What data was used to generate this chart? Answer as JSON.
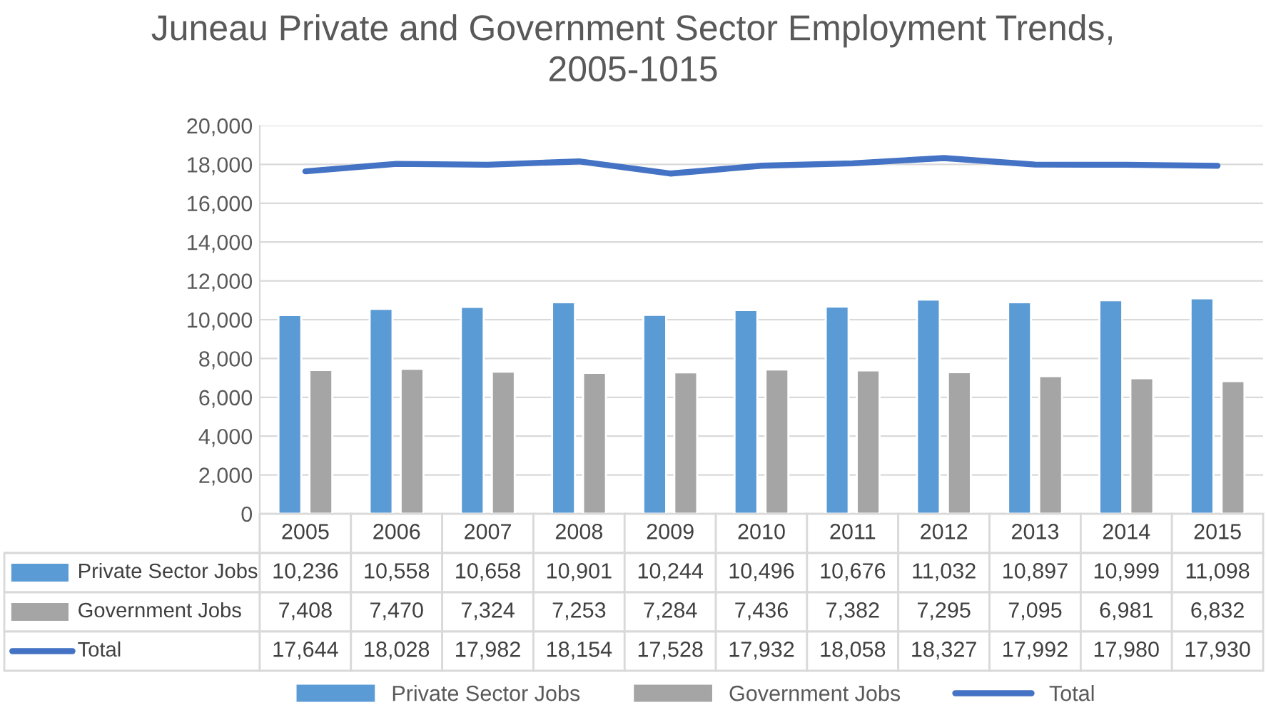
{
  "chart_data": {
    "type": "bar",
    "title": "Juneau Private and Government Sector Employment Trends,\n2005-1015",
    "categories": [
      "2005",
      "2006",
      "2007",
      "2008",
      "2009",
      "2010",
      "2011",
      "2012",
      "2013",
      "2014",
      "2015"
    ],
    "series": [
      {
        "name": "Private Sector Jobs",
        "color": "#5b9bd5",
        "values": [
          10236,
          10558,
          10658,
          10901,
          10244,
          10496,
          10676,
          11032,
          10897,
          10999,
          11098
        ],
        "value_labels": [
          "10,236",
          "10,558",
          "10,658",
          "10,901",
          "10,244",
          "10,496",
          "10,676",
          "11,032",
          "10,897",
          "10,999",
          "11,098"
        ]
      },
      {
        "name": "Government Jobs",
        "color": "#a5a5a5",
        "values": [
          7408,
          7470,
          7324,
          7253,
          7284,
          7436,
          7382,
          7295,
          7095,
          6981,
          6832
        ],
        "value_labels": [
          "7,408",
          "7,470",
          "7,324",
          "7,253",
          "7,284",
          "7,436",
          "7,382",
          "7,295",
          "7,095",
          "6,981",
          "6,832"
        ]
      },
      {
        "name": "Total",
        "type": "line",
        "color": "#4472c4",
        "values": [
          17644,
          18028,
          17982,
          18154,
          17528,
          17932,
          18058,
          18327,
          17992,
          17980,
          17930
        ],
        "value_labels": [
          "17,644",
          "18,028",
          "17,982",
          "18,154",
          "17,528",
          "17,932",
          "18,058",
          "18,327",
          "17,992",
          "17,980",
          "17,930"
        ]
      }
    ],
    "ylim": [
      0,
      20000
    ],
    "yticks": [
      0,
      {
        "value": 2000,
        "label": "2,000"
      },
      {
        "value": 4000,
        "label": "4,000"
      },
      {
        "value": 6000,
        "label": "6,000"
      },
      {
        "value": 8000,
        "label": "8,000"
      },
      {
        "value": 10000,
        "label": "10,000"
      },
      {
        "value": 12000,
        "label": "12,000"
      },
      {
        "value": 14000,
        "label": "14,000"
      },
      {
        "value": 16000,
        "label": "16,000"
      },
      {
        "value": 18000,
        "label": "18,000"
      },
      {
        "value": 20000,
        "label": "20,000"
      }
    ],
    "grid": "y",
    "legend": "bottom"
  }
}
